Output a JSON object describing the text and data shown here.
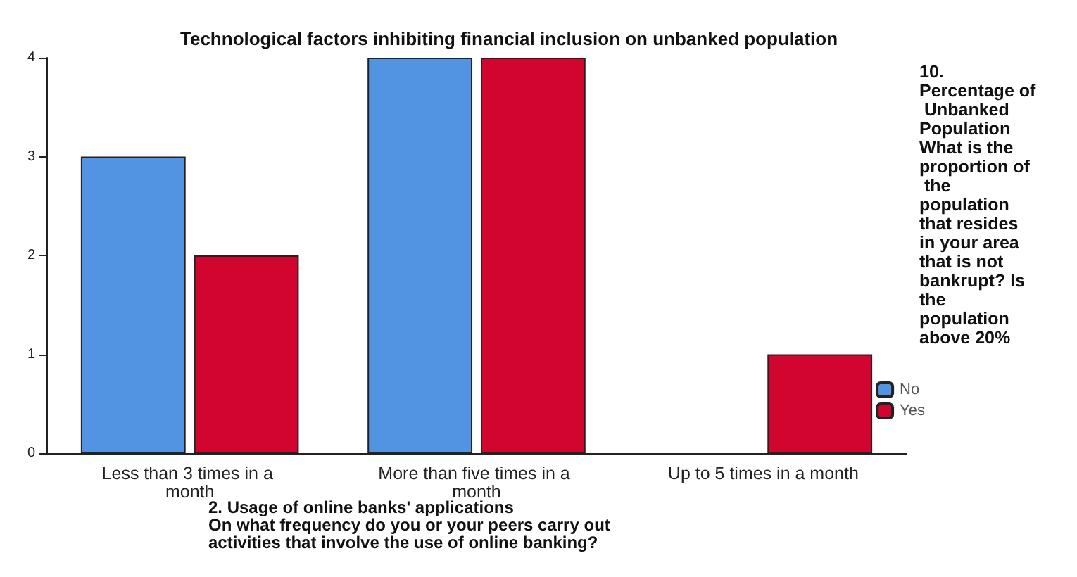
{
  "chart_data": {
    "type": "bar",
    "title": "Technological factors inhibiting financial inclusion on unbanked population",
    "xlabel": "2. Usage of online banks' applications\nOn what frequency do you or your peers carry out activities that involve the use of online banking?",
    "legend_title": "10. Percentage of Unbanked Population What is the proportion of the population that resides in your area that is not bankrupt? Is the population above 20%",
    "categories": [
      "Less than 3 times in a month",
      "More than five times in a month",
      "Up to 5 times in a month"
    ],
    "series": [
      {
        "name": "No",
        "color": "#5294e2",
        "values": [
          3,
          4,
          null
        ]
      },
      {
        "name": "Yes",
        "color": "#d2052f",
        "values": [
          2,
          4,
          1
        ]
      }
    ],
    "ylim": [
      0,
      4
    ],
    "yticks": [
      0,
      1,
      2,
      3,
      4
    ],
    "grid": false,
    "legend": "right"
  }
}
